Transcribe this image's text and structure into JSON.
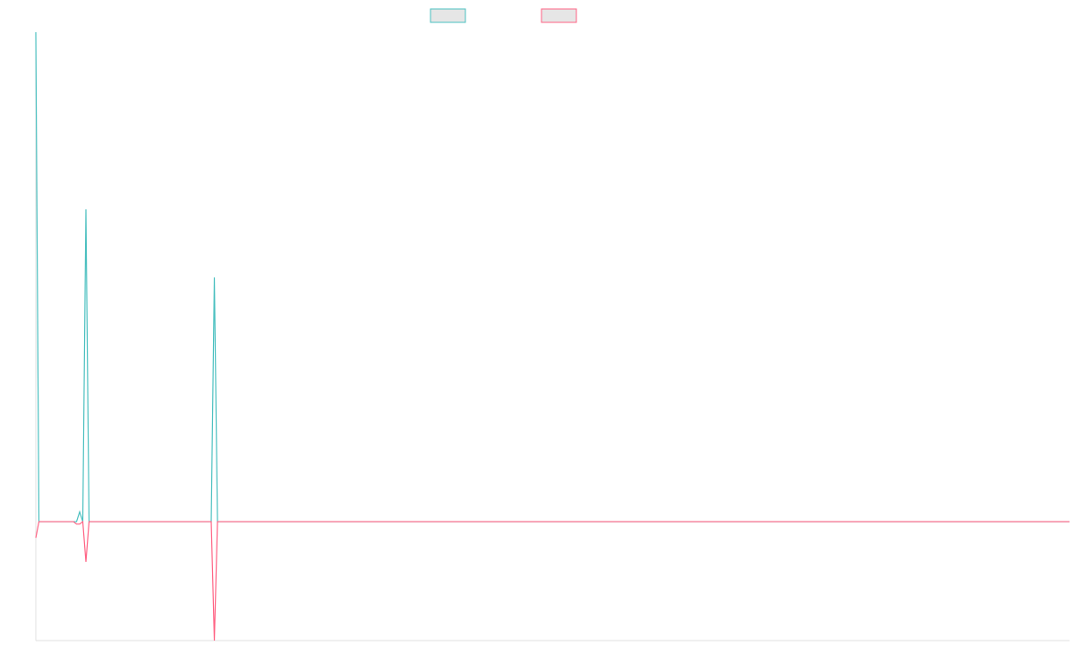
{
  "chart_data": {
    "type": "line",
    "x": [
      0,
      1,
      12,
      13,
      14,
      15,
      16,
      17,
      56,
      57,
      58,
      330
    ],
    "series": [
      {
        "color": "#4bc0c0",
        "values": [
          100,
          0,
          0,
          0,
          2,
          0,
          63.8,
          0,
          0,
          49.9,
          0,
          0
        ]
      },
      {
        "color": "#ff6384",
        "values": [
          -3.3,
          0,
          0,
          -0.5,
          -0.5,
          0,
          -8.2,
          0,
          0,
          -24.3,
          0,
          0
        ]
      }
    ],
    "xlim": [
      0,
      330
    ],
    "ylim": [
      -24.3,
      100
    ],
    "legend": "top"
  }
}
